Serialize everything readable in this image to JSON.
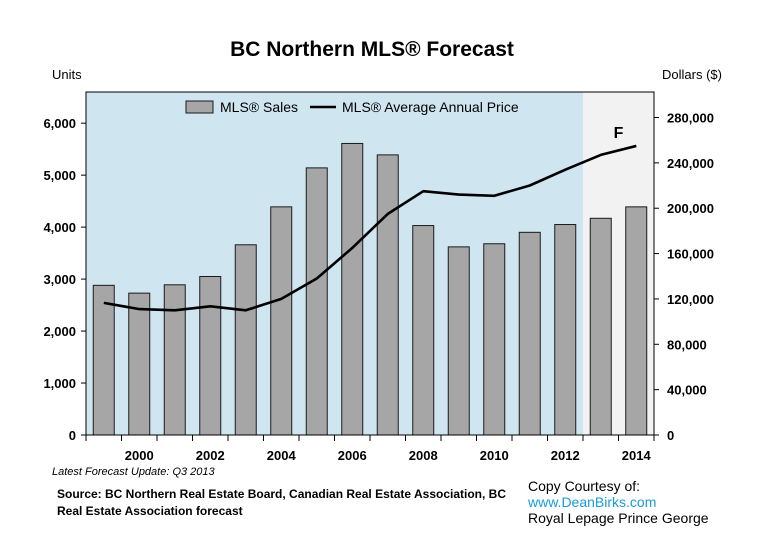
{
  "chart_data": {
    "type": "bar+line",
    "title": "BC Northern MLS® Forecast",
    "left_axis_label": "Units",
    "right_axis_label": "Dollars ($)",
    "years": [
      1999,
      2000,
      2001,
      2002,
      2003,
      2004,
      2005,
      2006,
      2007,
      2008,
      2009,
      2010,
      2011,
      2012,
      2013,
      2014
    ],
    "x_tick_labels": [
      "2000",
      "2002",
      "2004",
      "2006",
      "2008",
      "2010",
      "2012",
      "2014"
    ],
    "y_left_ticks": [
      "0",
      "1,000",
      "2,000",
      "3,000",
      "4,000",
      "5,000",
      "6,000"
    ],
    "y_right_ticks": [
      "0",
      "40,000",
      "80,000",
      "120,000",
      "160,000",
      "200,000",
      "240,000",
      "280,000"
    ],
    "y_left_range": [
      0,
      6600
    ],
    "y_right_range": [
      0,
      302500
    ],
    "series": [
      {
        "name": "MLS® Sales",
        "type": "bar",
        "axis": "left",
        "values": [
          2880,
          2730,
          2890,
          3050,
          3660,
          4390,
          5140,
          5610,
          5390,
          4030,
          3620,
          3680,
          3900,
          4050,
          4170,
          4390
        ]
      },
      {
        "name": "MLS® Average Annual Price",
        "type": "line",
        "axis": "right",
        "values": [
          116500,
          111000,
          110000,
          113500,
          110000,
          120000,
          138000,
          165000,
          195000,
          215000,
          212000,
          211000,
          220000,
          234000,
          247000,
          255000
        ]
      }
    ],
    "forecast": {
      "label": "F",
      "years": [
        2013,
        2014
      ]
    },
    "legend": "top-center",
    "grid": false,
    "colors": {
      "plot_background": "#cfe6f1",
      "forecast_background": "#f2f2f2",
      "bar_fill": "#a6a6a6",
      "bar_stroke": "#1a1a1a",
      "line": "#000000"
    }
  },
  "footer": {
    "update_note": "Latest Forecast Update: Q3 2013",
    "source": "Source: BC Northern Real Estate Board, Canadian Real Estate Association, BC Real Estate Association forecast",
    "courtesy_line": "Copy Courtesy of:",
    "courtesy_link": "www.DeanBirks.com",
    "courtesy_company": "Royal Lepage Prince George"
  }
}
